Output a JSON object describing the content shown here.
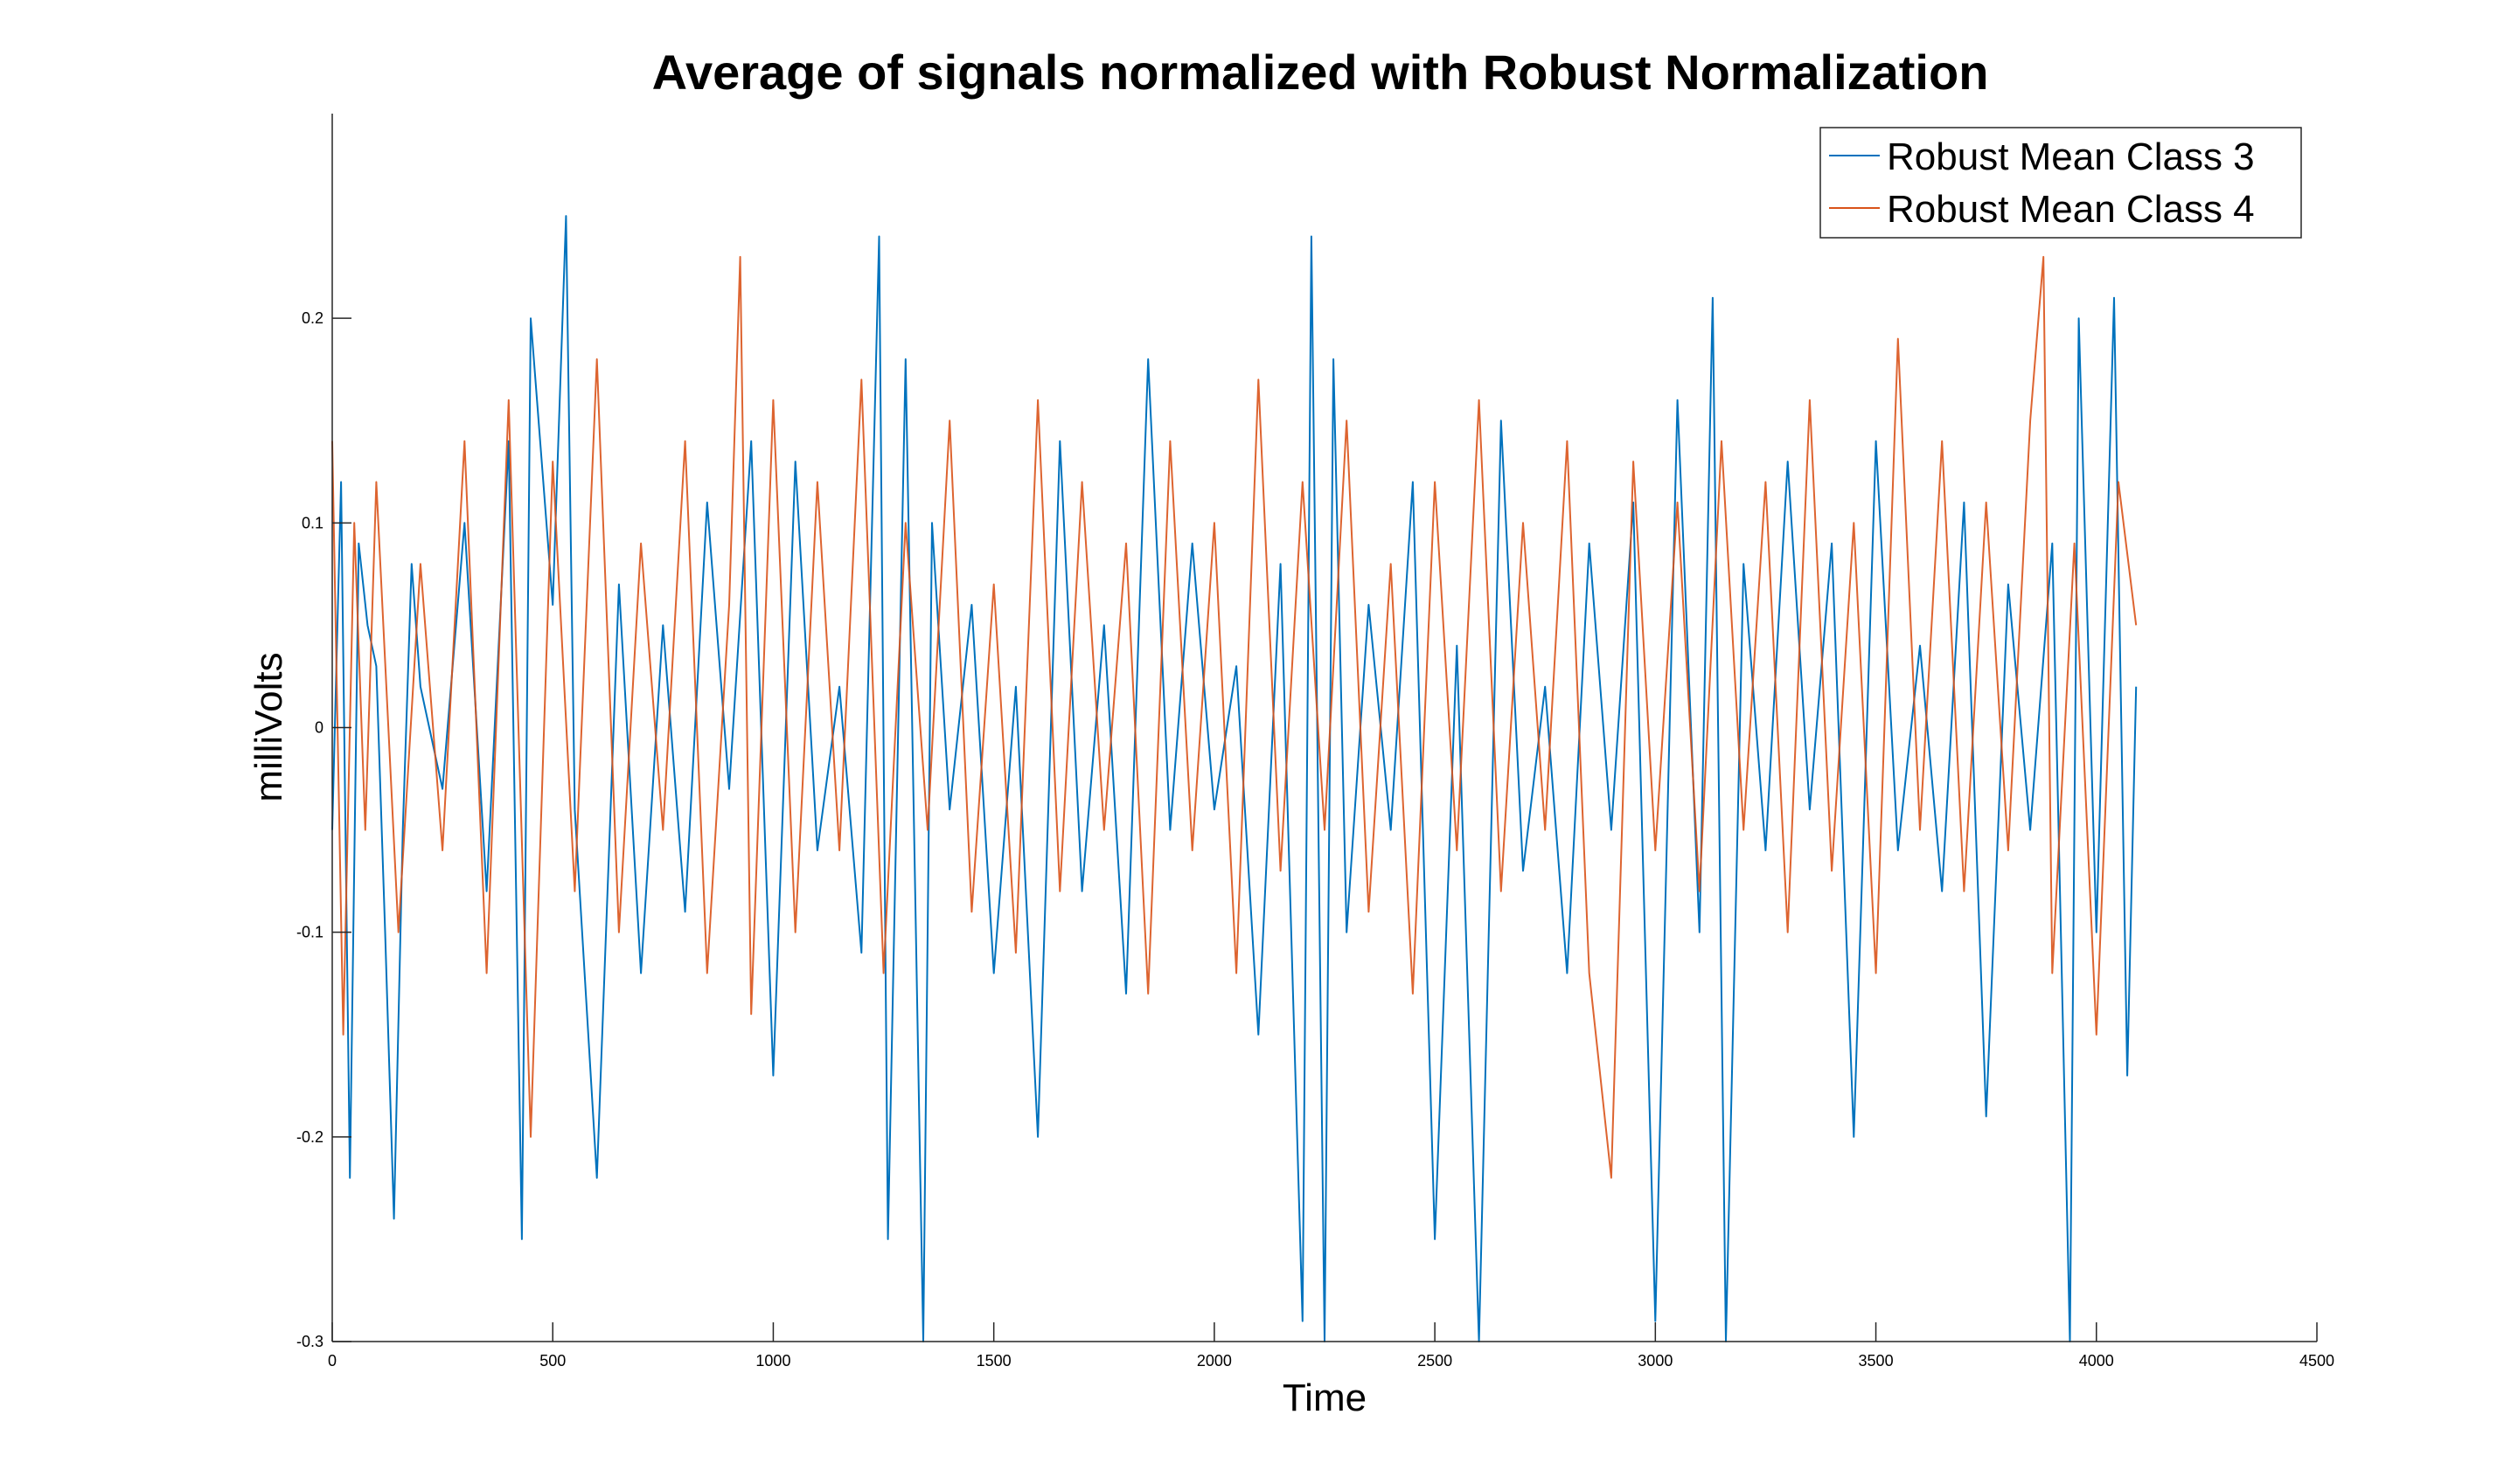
{
  "chart_data": {
    "type": "line",
    "title": "Average of signals normalized with Robust Normalization",
    "xlabel": "Time",
    "ylabel": "milliVolts",
    "xlim": [
      0,
      4500
    ],
    "ylim": [
      -0.3,
      0.3
    ],
    "xticks": [
      0,
      500,
      1000,
      1500,
      2000,
      2500,
      3000,
      3500,
      4000,
      4500
    ],
    "xtick_labels": [
      "0",
      "500",
      "1000",
      "1500",
      "2000",
      "2500",
      "3000",
      "3500",
      "4000",
      "4500"
    ],
    "yticks": [
      -0.3,
      -0.2,
      -0.1,
      0,
      0.1,
      0.2
    ],
    "ytick_labels": [
      "-0.3",
      "-0.2",
      "-0.1",
      "0",
      "0.1",
      "0.2"
    ],
    "grid": false,
    "legend_position": "top-right",
    "series": [
      {
        "name": "Robust Mean Class 3",
        "color": "#0072BD",
        "x": [
          0,
          20,
          40,
          60,
          80,
          100,
          120,
          140,
          160,
          180,
          200,
          250,
          300,
          350,
          400,
          430,
          450,
          500,
          530,
          550,
          600,
          650,
          700,
          750,
          800,
          850,
          900,
          950,
          1000,
          1050,
          1100,
          1150,
          1200,
          1240,
          1260,
          1300,
          1340,
          1360,
          1400,
          1450,
          1500,
          1550,
          1600,
          1650,
          1700,
          1750,
          1800,
          1850,
          1900,
          1950,
          2000,
          2050,
          2100,
          2150,
          2200,
          2220,
          2250,
          2270,
          2300,
          2350,
          2400,
          2450,
          2500,
          2550,
          2600,
          2650,
          2700,
          2750,
          2800,
          2850,
          2900,
          2950,
          3000,
          3050,
          3100,
          3130,
          3160,
          3200,
          3250,
          3300,
          3350,
          3400,
          3450,
          3500,
          3550,
          3600,
          3650,
          3700,
          3750,
          3800,
          3850,
          3900,
          3940,
          3960,
          4000,
          4040,
          4070,
          4090
        ],
        "y": [
          -0.05,
          0.12,
          -0.22,
          0.09,
          0.05,
          0.03,
          -0.1,
          -0.24,
          -0.05,
          0.08,
          0.02,
          -0.03,
          0.1,
          -0.08,
          0.14,
          -0.25,
          0.2,
          0.06,
          0.25,
          -0.04,
          -0.22,
          0.07,
          -0.12,
          0.05,
          -0.09,
          0.11,
          -0.03,
          0.14,
          -0.17,
          0.13,
          -0.06,
          0.02,
          -0.11,
          0.24,
          -0.25,
          0.18,
          -0.3,
          0.1,
          -0.04,
          0.06,
          -0.12,
          0.02,
          -0.2,
          0.14,
          -0.08,
          0.05,
          -0.13,
          0.18,
          -0.05,
          0.09,
          -0.04,
          0.03,
          -0.15,
          0.08,
          -0.29,
          0.24,
          -0.3,
          0.18,
          -0.1,
          0.06,
          -0.05,
          0.12,
          -0.25,
          0.04,
          -0.3,
          0.15,
          -0.07,
          0.02,
          -0.12,
          0.09,
          -0.05,
          0.11,
          -0.29,
          0.16,
          -0.1,
          0.21,
          -0.3,
          0.08,
          -0.06,
          0.13,
          -0.04,
          0.09,
          -0.2,
          0.14,
          -0.06,
          0.04,
          -0.08,
          0.11,
          -0.19,
          0.07,
          -0.05,
          0.09,
          -0.3,
          0.2,
          -0.1,
          0.21,
          -0.17,
          0.02
        ]
      },
      {
        "name": "Robust Mean Class 4",
        "color": "#D95319",
        "x": [
          0,
          25,
          50,
          75,
          100,
          150,
          200,
          250,
          300,
          350,
          400,
          450,
          500,
          550,
          600,
          650,
          700,
          750,
          800,
          850,
          900,
          925,
          950,
          1000,
          1050,
          1100,
          1150,
          1200,
          1250,
          1300,
          1350,
          1400,
          1450,
          1500,
          1550,
          1600,
          1650,
          1700,
          1750,
          1800,
          1850,
          1900,
          1950,
          2000,
          2050,
          2100,
          2150,
          2200,
          2250,
          2300,
          2350,
          2400,
          2450,
          2500,
          2550,
          2600,
          2650,
          2700,
          2750,
          2800,
          2850,
          2900,
          2950,
          3000,
          3050,
          3100,
          3150,
          3200,
          3250,
          3300,
          3350,
          3400,
          3450,
          3500,
          3550,
          3600,
          3650,
          3700,
          3750,
          3800,
          3850,
          3880,
          3900,
          3950,
          4000,
          4050,
          4090
        ],
        "y": [
          0.14,
          -0.15,
          0.1,
          -0.05,
          0.12,
          -0.1,
          0.08,
          -0.06,
          0.14,
          -0.12,
          0.16,
          -0.2,
          0.13,
          -0.08,
          0.18,
          -0.1,
          0.09,
          -0.05,
          0.14,
          -0.12,
          0.06,
          0.23,
          -0.14,
          0.16,
          -0.1,
          0.12,
          -0.06,
          0.17,
          -0.12,
          0.1,
          -0.05,
          0.15,
          -0.09,
          0.07,
          -0.11,
          0.16,
          -0.08,
          0.12,
          -0.05,
          0.09,
          -0.13,
          0.14,
          -0.06,
          0.1,
          -0.12,
          0.17,
          -0.07,
          0.12,
          -0.05,
          0.15,
          -0.09,
          0.08,
          -0.13,
          0.12,
          -0.06,
          0.16,
          -0.08,
          0.1,
          -0.05,
          0.14,
          -0.12,
          -0.22,
          0.13,
          -0.06,
          0.11,
          -0.08,
          0.14,
          -0.05,
          0.12,
          -0.1,
          0.16,
          -0.07,
          0.1,
          -0.12,
          0.19,
          -0.05,
          0.14,
          -0.08,
          0.11,
          -0.06,
          0.15,
          0.23,
          -0.12,
          0.09,
          -0.15,
          0.12,
          0.05
        ]
      }
    ]
  }
}
